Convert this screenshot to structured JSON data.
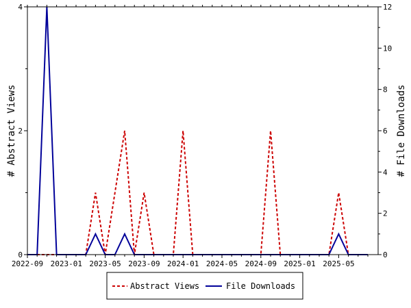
{
  "chart_data": {
    "type": "line",
    "title": "",
    "xlabel": "",
    "ylabel_left": "# Abstract Views",
    "ylabel_right": "# File Downloads",
    "x_tick_labels": [
      "2022-09",
      "2023-01",
      "2023-05",
      "2023-09",
      "2024-01",
      "2024-05",
      "2024-09",
      "2025-01",
      "2025-05"
    ],
    "ylim_left": [
      0,
      4
    ],
    "ylim_right": [
      0,
      12
    ],
    "y_ticks_left": [
      "0",
      "2",
      "4"
    ],
    "y_ticks_right": [
      "0",
      "2",
      "4",
      "6",
      "8",
      "10",
      "12"
    ],
    "months": [
      "2022-09",
      "2022-10",
      "2022-11",
      "2022-12",
      "2023-01",
      "2023-02",
      "2023-03",
      "2023-04",
      "2023-05",
      "2023-06",
      "2023-07",
      "2023-08",
      "2023-09",
      "2023-10",
      "2023-11",
      "2023-12",
      "2024-01",
      "2024-02",
      "2024-03",
      "2024-04",
      "2024-05",
      "2024-06",
      "2024-07",
      "2024-08",
      "2024-09",
      "2024-10",
      "2024-11",
      "2024-12",
      "2025-01",
      "2025-02",
      "2025-03",
      "2025-04",
      "2025-05",
      "2025-06",
      "2025-07",
      "2025-08"
    ],
    "series": [
      {
        "name": "Abstract Views",
        "axis": "left",
        "color": "#cc0000",
        "style": "dashed",
        "values": [
          0,
          0,
          0,
          0,
          0,
          0,
          0,
          1,
          0,
          1,
          2,
          0,
          1,
          0,
          0,
          0,
          2,
          0,
          0,
          0,
          0,
          0,
          0,
          0,
          0,
          2,
          0,
          0,
          0,
          0,
          0,
          0,
          1,
          0,
          0,
          0
        ]
      },
      {
        "name": "File Downloads",
        "axis": "right",
        "color": "#000099",
        "style": "solid",
        "values": [
          0,
          0,
          12,
          0,
          0,
          0,
          0,
          1,
          0,
          0,
          1,
          0,
          0,
          0,
          0,
          0,
          0,
          0,
          0,
          0,
          0,
          0,
          0,
          0,
          0,
          0,
          0,
          0,
          0,
          0,
          0,
          0,
          1,
          0,
          0,
          0
        ]
      }
    ],
    "legend_position": "bottom"
  }
}
